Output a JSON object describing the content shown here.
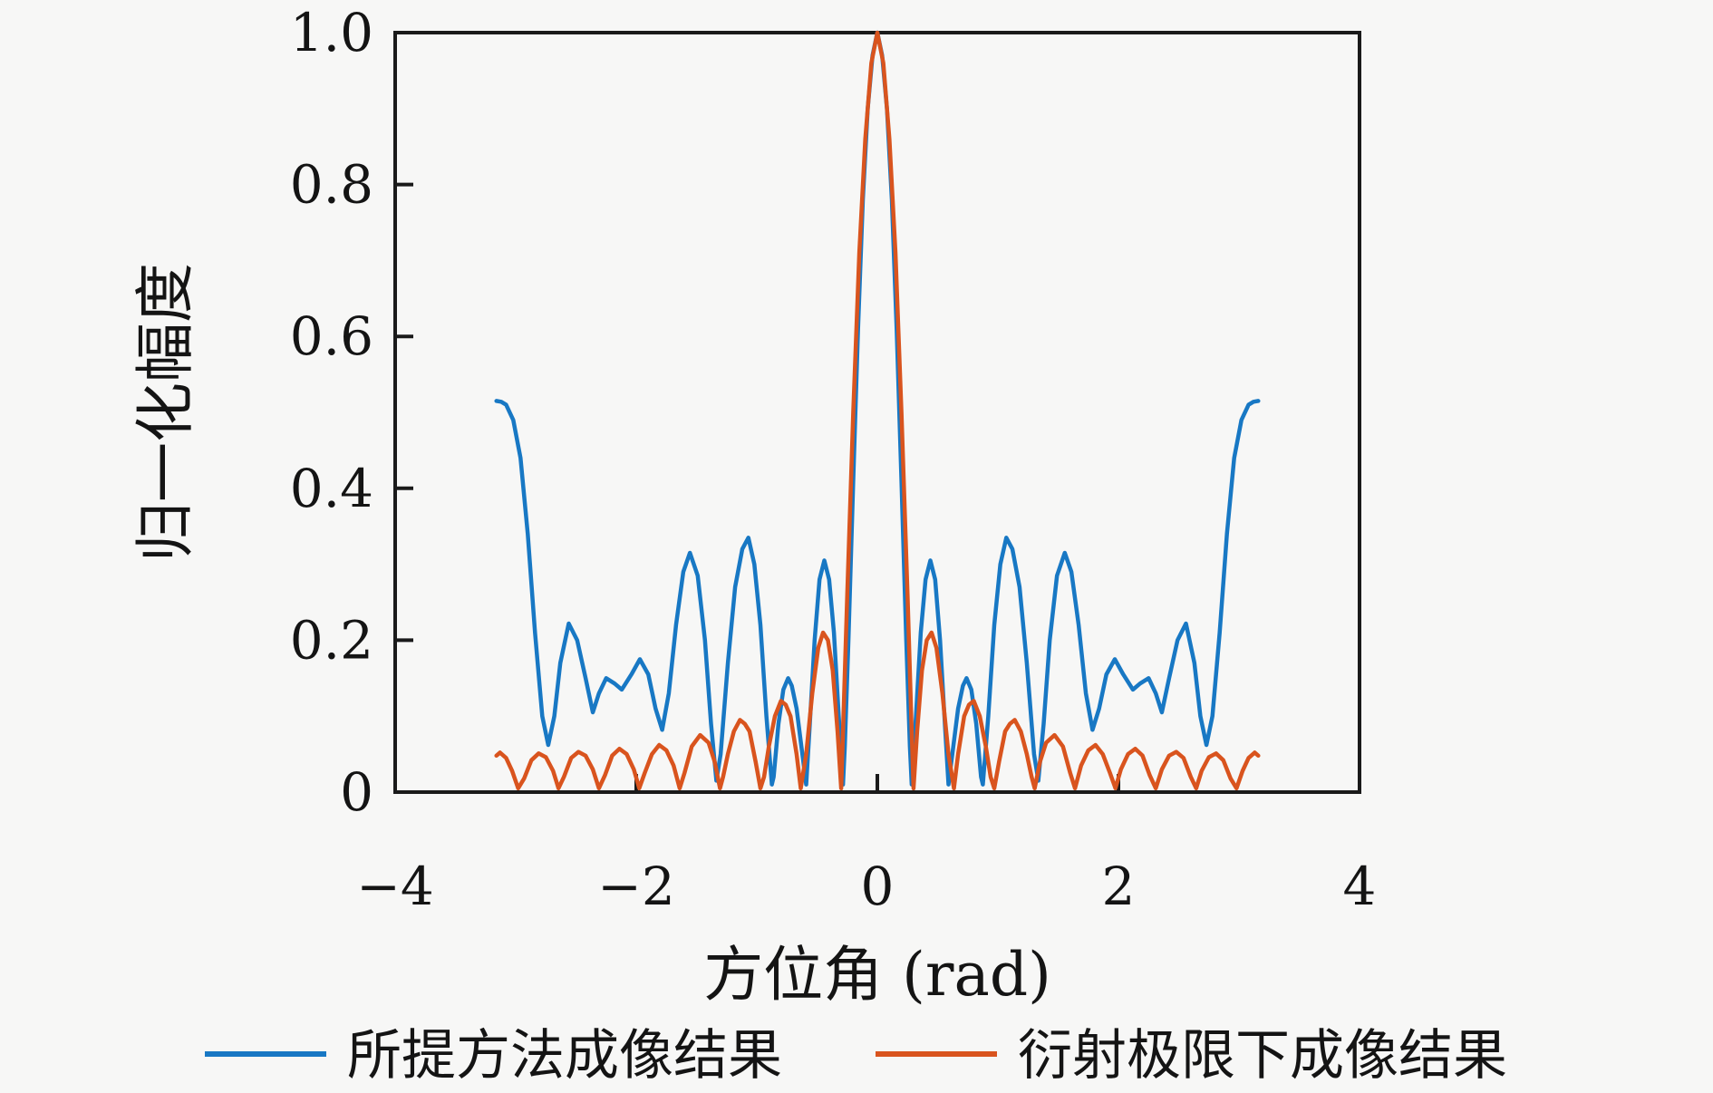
{
  "figure": {
    "background_color": "#f7f7f6",
    "frame_color": "#1a1a1a",
    "has_grid": false,
    "legend_position": "bottom-center"
  },
  "chart_data": {
    "type": "line",
    "title": "",
    "xlabel": "方位角 (rad)",
    "ylabel": "归一化幅度",
    "xlim": [
      -4,
      4
    ],
    "ylim": [
      0,
      1.0
    ],
    "x_ticks": [
      -4,
      -2,
      0,
      2,
      4
    ],
    "x_tick_labels": [
      "−4",
      "−2",
      "0",
      "2",
      "4"
    ],
    "y_ticks": [
      0,
      0.2,
      0.4,
      0.6,
      0.8,
      1.0
    ],
    "y_tick_labels": [
      "0",
      "0.2",
      "0.4",
      "0.6",
      "0.8",
      "1.0"
    ],
    "grid": false,
    "series": [
      {
        "name": "所提方法成像结果",
        "color": "#1878c4",
        "line_width": 4.5,
        "points": [
          [
            -3.16,
            0.515
          ],
          [
            -3.12,
            0.514
          ],
          [
            -3.08,
            0.51
          ],
          [
            -3.02,
            0.49
          ],
          [
            -2.96,
            0.44
          ],
          [
            -2.9,
            0.34
          ],
          [
            -2.84,
            0.21
          ],
          [
            -2.78,
            0.1
          ],
          [
            -2.73,
            0.062
          ],
          [
            -2.68,
            0.1
          ],
          [
            -2.63,
            0.17
          ],
          [
            -2.56,
            0.222
          ],
          [
            -2.49,
            0.2
          ],
          [
            -2.42,
            0.15
          ],
          [
            -2.36,
            0.105
          ],
          [
            -2.31,
            0.13
          ],
          [
            -2.25,
            0.15
          ],
          [
            -2.18,
            0.143
          ],
          [
            -2.12,
            0.135
          ],
          [
            -2.04,
            0.155
          ],
          [
            -1.97,
            0.175
          ],
          [
            -1.9,
            0.155
          ],
          [
            -1.84,
            0.11
          ],
          [
            -1.785,
            0.082
          ],
          [
            -1.73,
            0.13
          ],
          [
            -1.67,
            0.22
          ],
          [
            -1.61,
            0.29
          ],
          [
            -1.555,
            0.315
          ],
          [
            -1.49,
            0.285
          ],
          [
            -1.43,
            0.2
          ],
          [
            -1.38,
            0.09
          ],
          [
            -1.335,
            0.015
          ],
          [
            -1.3,
            0.05
          ],
          [
            -1.24,
            0.17
          ],
          [
            -1.18,
            0.27
          ],
          [
            -1.12,
            0.32
          ],
          [
            -1.07,
            0.335
          ],
          [
            -1.02,
            0.3
          ],
          [
            -0.97,
            0.22
          ],
          [
            -0.92,
            0.1
          ],
          [
            -0.875,
            0.01
          ],
          [
            -0.86,
            0.02
          ],
          [
            -0.82,
            0.09
          ],
          [
            -0.78,
            0.135
          ],
          [
            -0.74,
            0.15
          ],
          [
            -0.71,
            0.14
          ],
          [
            -0.67,
            0.11
          ],
          [
            -0.63,
            0.06
          ],
          [
            -0.59,
            0.01
          ],
          [
            -0.56,
            0.09
          ],
          [
            -0.52,
            0.2
          ],
          [
            -0.48,
            0.28
          ],
          [
            -0.44,
            0.305
          ],
          [
            -0.4,
            0.28
          ],
          [
            -0.36,
            0.21
          ],
          [
            -0.32,
            0.1
          ],
          [
            -0.285,
            0.01
          ],
          [
            -0.27,
            0.06
          ],
          [
            -0.24,
            0.2
          ],
          [
            -0.2,
            0.41
          ],
          [
            -0.16,
            0.61
          ],
          [
            -0.12,
            0.78
          ],
          [
            -0.08,
            0.9
          ],
          [
            -0.04,
            0.97
          ],
          [
            0,
            1.0
          ],
          [
            0.04,
            0.97
          ],
          [
            0.08,
            0.9
          ],
          [
            0.12,
            0.78
          ],
          [
            0.16,
            0.61
          ],
          [
            0.2,
            0.41
          ],
          [
            0.24,
            0.2
          ],
          [
            0.27,
            0.06
          ],
          [
            0.285,
            0.01
          ],
          [
            0.32,
            0.1
          ],
          [
            0.36,
            0.21
          ],
          [
            0.4,
            0.28
          ],
          [
            0.44,
            0.305
          ],
          [
            0.48,
            0.28
          ],
          [
            0.52,
            0.2
          ],
          [
            0.56,
            0.09
          ],
          [
            0.59,
            0.01
          ],
          [
            0.63,
            0.06
          ],
          [
            0.67,
            0.11
          ],
          [
            0.71,
            0.14
          ],
          [
            0.74,
            0.15
          ],
          [
            0.78,
            0.135
          ],
          [
            0.82,
            0.09
          ],
          [
            0.86,
            0.02
          ],
          [
            0.875,
            0.01
          ],
          [
            0.92,
            0.1
          ],
          [
            0.97,
            0.22
          ],
          [
            1.02,
            0.3
          ],
          [
            1.07,
            0.335
          ],
          [
            1.12,
            0.32
          ],
          [
            1.18,
            0.27
          ],
          [
            1.24,
            0.17
          ],
          [
            1.3,
            0.05
          ],
          [
            1.335,
            0.015
          ],
          [
            1.38,
            0.09
          ],
          [
            1.43,
            0.2
          ],
          [
            1.49,
            0.285
          ],
          [
            1.555,
            0.315
          ],
          [
            1.61,
            0.29
          ],
          [
            1.67,
            0.22
          ],
          [
            1.73,
            0.13
          ],
          [
            1.785,
            0.082
          ],
          [
            1.84,
            0.11
          ],
          [
            1.9,
            0.155
          ],
          [
            1.97,
            0.175
          ],
          [
            2.04,
            0.155
          ],
          [
            2.12,
            0.135
          ],
          [
            2.18,
            0.143
          ],
          [
            2.25,
            0.15
          ],
          [
            2.31,
            0.13
          ],
          [
            2.36,
            0.105
          ],
          [
            2.42,
            0.15
          ],
          [
            2.49,
            0.2
          ],
          [
            2.56,
            0.222
          ],
          [
            2.63,
            0.17
          ],
          [
            2.68,
            0.1
          ],
          [
            2.73,
            0.062
          ],
          [
            2.78,
            0.1
          ],
          [
            2.84,
            0.21
          ],
          [
            2.9,
            0.34
          ],
          [
            2.96,
            0.44
          ],
          [
            3.02,
            0.49
          ],
          [
            3.08,
            0.51
          ],
          [
            3.12,
            0.514
          ],
          [
            3.16,
            0.515
          ]
        ]
      },
      {
        "name": "衍射极限下成像结果",
        "color": "#d9541e",
        "line_width": 4.5,
        "points": [
          [
            -3.16,
            0.048
          ],
          [
            -3.13,
            0.052
          ],
          [
            -3.08,
            0.045
          ],
          [
            -3.03,
            0.028
          ],
          [
            -2.98,
            0.005
          ],
          [
            -2.93,
            0.018
          ],
          [
            -2.87,
            0.042
          ],
          [
            -2.81,
            0.051
          ],
          [
            -2.75,
            0.046
          ],
          [
            -2.69,
            0.028
          ],
          [
            -2.645,
            0.005
          ],
          [
            -2.6,
            0.02
          ],
          [
            -2.54,
            0.045
          ],
          [
            -2.48,
            0.053
          ],
          [
            -2.42,
            0.048
          ],
          [
            -2.36,
            0.03
          ],
          [
            -2.31,
            0.005
          ],
          [
            -2.26,
            0.022
          ],
          [
            -2.2,
            0.048
          ],
          [
            -2.14,
            0.057
          ],
          [
            -2.08,
            0.05
          ],
          [
            -2.02,
            0.03
          ],
          [
            -1.975,
            0.005
          ],
          [
            -1.93,
            0.025
          ],
          [
            -1.87,
            0.05
          ],
          [
            -1.81,
            0.062
          ],
          [
            -1.75,
            0.055
          ],
          [
            -1.69,
            0.035
          ],
          [
            -1.64,
            0.005
          ],
          [
            -1.6,
            0.025
          ],
          [
            -1.54,
            0.06
          ],
          [
            -1.47,
            0.075
          ],
          [
            -1.4,
            0.065
          ],
          [
            -1.35,
            0.04
          ],
          [
            -1.305,
            0.005
          ],
          [
            -1.28,
            0.02
          ],
          [
            -1.24,
            0.05
          ],
          [
            -1.19,
            0.08
          ],
          [
            -1.14,
            0.095
          ],
          [
            -1.1,
            0.09
          ],
          [
            -1.06,
            0.08
          ],
          [
            -1.01,
            0.04
          ],
          [
            -0.97,
            0.005
          ],
          [
            -0.94,
            0.02
          ],
          [
            -0.9,
            0.06
          ],
          [
            -0.85,
            0.1
          ],
          [
            -0.8,
            0.12
          ],
          [
            -0.76,
            0.115
          ],
          [
            -0.72,
            0.1
          ],
          [
            -0.67,
            0.05
          ],
          [
            -0.635,
            0.005
          ],
          [
            -0.59,
            0.05
          ],
          [
            -0.54,
            0.13
          ],
          [
            -0.49,
            0.19
          ],
          [
            -0.45,
            0.21
          ],
          [
            -0.41,
            0.2
          ],
          [
            -0.37,
            0.16
          ],
          [
            -0.33,
            0.08
          ],
          [
            -0.3,
            0.005
          ],
          [
            -0.285,
            0.08
          ],
          [
            -0.25,
            0.26
          ],
          [
            -0.2,
            0.5
          ],
          [
            -0.15,
            0.71
          ],
          [
            -0.1,
            0.86
          ],
          [
            -0.05,
            0.96
          ],
          [
            0,
            1.0
          ],
          [
            0.05,
            0.96
          ],
          [
            0.1,
            0.86
          ],
          [
            0.15,
            0.71
          ],
          [
            0.2,
            0.5
          ],
          [
            0.25,
            0.26
          ],
          [
            0.285,
            0.08
          ],
          [
            0.3,
            0.005
          ],
          [
            0.33,
            0.08
          ],
          [
            0.37,
            0.16
          ],
          [
            0.41,
            0.2
          ],
          [
            0.45,
            0.21
          ],
          [
            0.49,
            0.19
          ],
          [
            0.54,
            0.13
          ],
          [
            0.59,
            0.05
          ],
          [
            0.635,
            0.005
          ],
          [
            0.67,
            0.05
          ],
          [
            0.72,
            0.1
          ],
          [
            0.76,
            0.115
          ],
          [
            0.8,
            0.12
          ],
          [
            0.85,
            0.1
          ],
          [
            0.9,
            0.06
          ],
          [
            0.94,
            0.02
          ],
          [
            0.97,
            0.005
          ],
          [
            1.01,
            0.04
          ],
          [
            1.06,
            0.08
          ],
          [
            1.1,
            0.09
          ],
          [
            1.14,
            0.095
          ],
          [
            1.19,
            0.08
          ],
          [
            1.24,
            0.05
          ],
          [
            1.28,
            0.02
          ],
          [
            1.305,
            0.005
          ],
          [
            1.35,
            0.04
          ],
          [
            1.4,
            0.065
          ],
          [
            1.47,
            0.075
          ],
          [
            1.54,
            0.06
          ],
          [
            1.6,
            0.025
          ],
          [
            1.64,
            0.005
          ],
          [
            1.69,
            0.035
          ],
          [
            1.75,
            0.055
          ],
          [
            1.81,
            0.062
          ],
          [
            1.87,
            0.05
          ],
          [
            1.93,
            0.025
          ],
          [
            1.975,
            0.005
          ],
          [
            2.02,
            0.03
          ],
          [
            2.08,
            0.05
          ],
          [
            2.14,
            0.057
          ],
          [
            2.2,
            0.048
          ],
          [
            2.26,
            0.022
          ],
          [
            2.31,
            0.005
          ],
          [
            2.36,
            0.03
          ],
          [
            2.42,
            0.048
          ],
          [
            2.48,
            0.053
          ],
          [
            2.54,
            0.045
          ],
          [
            2.6,
            0.02
          ],
          [
            2.645,
            0.005
          ],
          [
            2.69,
            0.028
          ],
          [
            2.75,
            0.046
          ],
          [
            2.81,
            0.051
          ],
          [
            2.87,
            0.042
          ],
          [
            2.93,
            0.018
          ],
          [
            2.98,
            0.005
          ],
          [
            3.03,
            0.028
          ],
          [
            3.08,
            0.045
          ],
          [
            3.13,
            0.052
          ],
          [
            3.16,
            0.048
          ]
        ]
      }
    ]
  }
}
